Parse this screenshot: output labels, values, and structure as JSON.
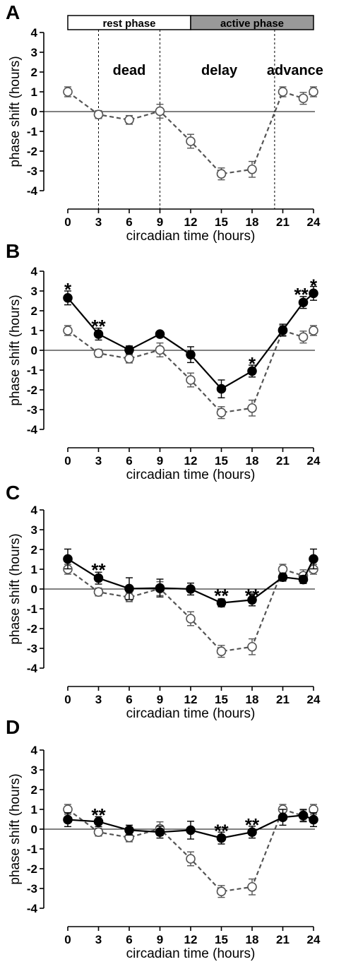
{
  "figure": {
    "panels": [
      "A",
      "B",
      "C",
      "D"
    ],
    "colors": {
      "open_series": "#555555",
      "filled_series": "#000000",
      "active_phase_fill": "#999999",
      "rest_phase_fill": "#ffffff"
    }
  },
  "chart_data": [
    {
      "panel": "A",
      "type": "line",
      "xlabel": "circadian time (hours)",
      "ylabel": "phase shift (hours)",
      "xlim": [
        0,
        24
      ],
      "ylim": [
        -4,
        4
      ],
      "xticks": [
        0,
        3,
        6,
        9,
        12,
        15,
        18,
        21,
        24
      ],
      "yticks": [
        4,
        3,
        2,
        1,
        0,
        -1,
        -2,
        -3,
        -4
      ],
      "reference_line_y": 0,
      "phase_bar": {
        "rest_label": "rest phase",
        "active_label": "active phase",
        "rest_range": [
          0,
          12
        ],
        "active_range": [
          12,
          24
        ]
      },
      "vertical_lines_x": [
        3,
        9,
        20.2
      ],
      "regions": [
        {
          "label": "dead",
          "x": 6
        },
        {
          "label": "delay",
          "x": 14.8
        },
        {
          "label": "advance",
          "x": 22.2
        }
      ],
      "series": [
        {
          "style": "open-dashed",
          "x": [
            0,
            3,
            6,
            9,
            12,
            15,
            18,
            21,
            23,
            24
          ],
          "y": [
            1.0,
            -0.15,
            -0.42,
            0.02,
            -1.5,
            -3.15,
            -2.92,
            1.0,
            0.67,
            1.0
          ],
          "err": [
            0.25,
            0.2,
            0.22,
            0.35,
            0.35,
            0.3,
            0.4,
            0.25,
            0.3,
            0.25
          ]
        }
      ],
      "annotations": []
    },
    {
      "panel": "B",
      "type": "line",
      "xlabel": "circadian time (hours)",
      "ylabel": "phase shift (hours)",
      "xlim": [
        0,
        24
      ],
      "ylim": [
        -4,
        4
      ],
      "xticks": [
        0,
        3,
        6,
        9,
        12,
        15,
        18,
        21,
        24
      ],
      "yticks": [
        4,
        3,
        2,
        1,
        0,
        -1,
        -2,
        -3,
        -4
      ],
      "reference_line_y": 0,
      "series": [
        {
          "style": "open-dashed",
          "x": [
            0,
            3,
            6,
            9,
            12,
            15,
            18,
            21,
            23,
            24
          ],
          "y": [
            1.0,
            -0.15,
            -0.42,
            0.02,
            -1.5,
            -3.15,
            -2.92,
            1.0,
            0.67,
            1.0
          ],
          "err": [
            0.25,
            0.2,
            0.22,
            0.35,
            0.35,
            0.3,
            0.4,
            0.25,
            0.3,
            0.25
          ]
        },
        {
          "style": "filled-solid",
          "x": [
            0,
            3,
            6,
            9,
            12,
            15,
            18,
            21,
            23,
            24
          ],
          "y": [
            2.65,
            0.82,
            0.02,
            0.82,
            -0.22,
            -1.95,
            -1.05,
            1.02,
            2.42,
            2.88
          ],
          "err": [
            0.35,
            0.3,
            0.2,
            0.1,
            0.4,
            0.45,
            0.3,
            0.3,
            0.3,
            0.35
          ]
        }
      ],
      "annotations": [
        {
          "text": "*",
          "x": 0,
          "y": 3.1
        },
        {
          "text": "**",
          "x": 3,
          "y": 1.25
        },
        {
          "text": "*",
          "x": 18,
          "y": -0.65
        },
        {
          "text": "**",
          "x": 22.8,
          "y": 2.85
        },
        {
          "text": "*",
          "x": 24,
          "y": 3.3
        }
      ]
    },
    {
      "panel": "C",
      "type": "line",
      "xlabel": "circadian time (hours)",
      "ylabel": "phase shift (hours)",
      "xlim": [
        0,
        24
      ],
      "ylim": [
        -4,
        4
      ],
      "xticks": [
        0,
        3,
        6,
        9,
        12,
        15,
        18,
        21,
        24
      ],
      "yticks": [
        4,
        3,
        2,
        1,
        0,
        -1,
        -2,
        -3,
        -4
      ],
      "reference_line_y": 0,
      "series": [
        {
          "style": "open-dashed",
          "x": [
            0,
            3,
            6,
            9,
            12,
            15,
            18,
            21,
            23,
            24
          ],
          "y": [
            1.0,
            -0.15,
            -0.42,
            0.02,
            -1.5,
            -3.15,
            -2.92,
            1.0,
            0.67,
            1.0
          ],
          "err": [
            0.25,
            0.2,
            0.22,
            0.35,
            0.35,
            0.3,
            0.4,
            0.25,
            0.3,
            0.25
          ]
        },
        {
          "style": "filled-solid",
          "x": [
            0,
            3,
            6,
            9,
            12,
            15,
            18,
            21,
            23,
            24
          ],
          "y": [
            1.52,
            0.55,
            0.02,
            0.05,
            0.0,
            -0.7,
            -0.55,
            0.6,
            0.48,
            1.52
          ],
          "err": [
            0.5,
            0.3,
            0.55,
            0.45,
            0.3,
            0.2,
            0.3,
            0.2,
            0.2,
            0.5
          ]
        }
      ],
      "annotations": [
        {
          "text": "**",
          "x": 3,
          "y": 1.0
        },
        {
          "text": "**",
          "x": 15,
          "y": -0.3
        },
        {
          "text": "**",
          "x": 18,
          "y": -0.3
        }
      ]
    },
    {
      "panel": "D",
      "type": "line",
      "xlabel": "circadian time (hours)",
      "ylabel": "phase shift (hours)",
      "xlim": [
        0,
        24
      ],
      "ylim": [
        -4,
        4
      ],
      "xticks": [
        0,
        3,
        6,
        9,
        12,
        15,
        18,
        21,
        24
      ],
      "yticks": [
        4,
        3,
        2,
        1,
        0,
        -1,
        -2,
        -3,
        -4
      ],
      "reference_line_y": 0,
      "series": [
        {
          "style": "open-dashed",
          "x": [
            0,
            3,
            6,
            9,
            12,
            15,
            18,
            21,
            23,
            24
          ],
          "y": [
            1.0,
            -0.15,
            -0.42,
            0.02,
            -1.5,
            -3.15,
            -2.92,
            1.0,
            0.67,
            1.0
          ],
          "err": [
            0.25,
            0.2,
            0.22,
            0.35,
            0.35,
            0.3,
            0.4,
            0.25,
            0.3,
            0.25
          ]
        },
        {
          "style": "filled-solid",
          "x": [
            0,
            3,
            6,
            9,
            12,
            15,
            18,
            21,
            23,
            24
          ],
          "y": [
            0.48,
            0.38,
            -0.05,
            -0.15,
            -0.05,
            -0.45,
            -0.15,
            0.6,
            0.7,
            0.48
          ],
          "err": [
            0.35,
            0.25,
            0.25,
            0.3,
            0.45,
            0.3,
            0.3,
            0.4,
            0.3,
            0.35
          ]
        }
      ],
      "annotations": [
        {
          "text": "**",
          "x": 3,
          "y": 0.75
        },
        {
          "text": "**",
          "x": 15,
          "y": -0.05
        },
        {
          "text": "**",
          "x": 18,
          "y": 0.25
        }
      ]
    }
  ]
}
